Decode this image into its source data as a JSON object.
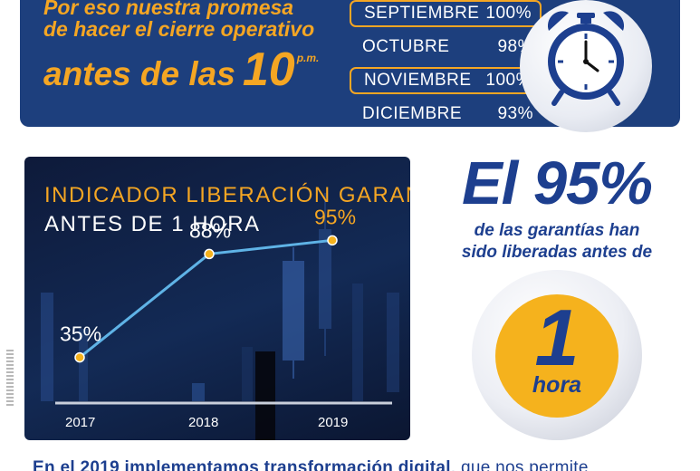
{
  "banner": {
    "promise_line1": "Por eso nuestra promesa",
    "promise_line2": "de hacer el cierre operativo",
    "promise_line3": "antes de las",
    "promise_hour": "10",
    "promise_pm": "p.m.",
    "months": [
      {
        "name": "SEPTIEMBRE",
        "pct": "100%",
        "highlight": true
      },
      {
        "name": "OCTUBRE",
        "pct": "98%",
        "highlight": false
      },
      {
        "name": "NOVIEMBRE",
        "pct": "100%",
        "highlight": true
      },
      {
        "name": "DICIEMBRE",
        "pct": "93%",
        "highlight": false
      }
    ],
    "clock_icon": "alarm-clock-icon"
  },
  "chart_data": {
    "type": "line",
    "title": "INDICADOR  LIBERACIÓN GARANTÍAS",
    "subtitle": "ANTES DE 1 HORA",
    "x": [
      "2017",
      "2018",
      "2019"
    ],
    "values": [
      35,
      88,
      95
    ],
    "value_labels": [
      "35%",
      "88%",
      "95%"
    ],
    "label_colors": [
      "#ffffff",
      "#ffffff",
      "#f5a623"
    ],
    "line_color": "#5fb3e6",
    "point_color": "#f5b21d",
    "ylim": [
      0,
      110
    ]
  },
  "stat": {
    "headline": "El 95%",
    "desc_line1": "de las garantías han",
    "desc_line2": "sido liberadas antes de",
    "badge_number": "1",
    "badge_word": "hora"
  },
  "bottom": {
    "bold_part": "En el 2019 implementamos transformación digital",
    "rest": ", que nos permite"
  },
  "colors": {
    "navy": "#1d3f7d",
    "orange": "#f5a623",
    "stat_blue": "#1d3f8f"
  }
}
